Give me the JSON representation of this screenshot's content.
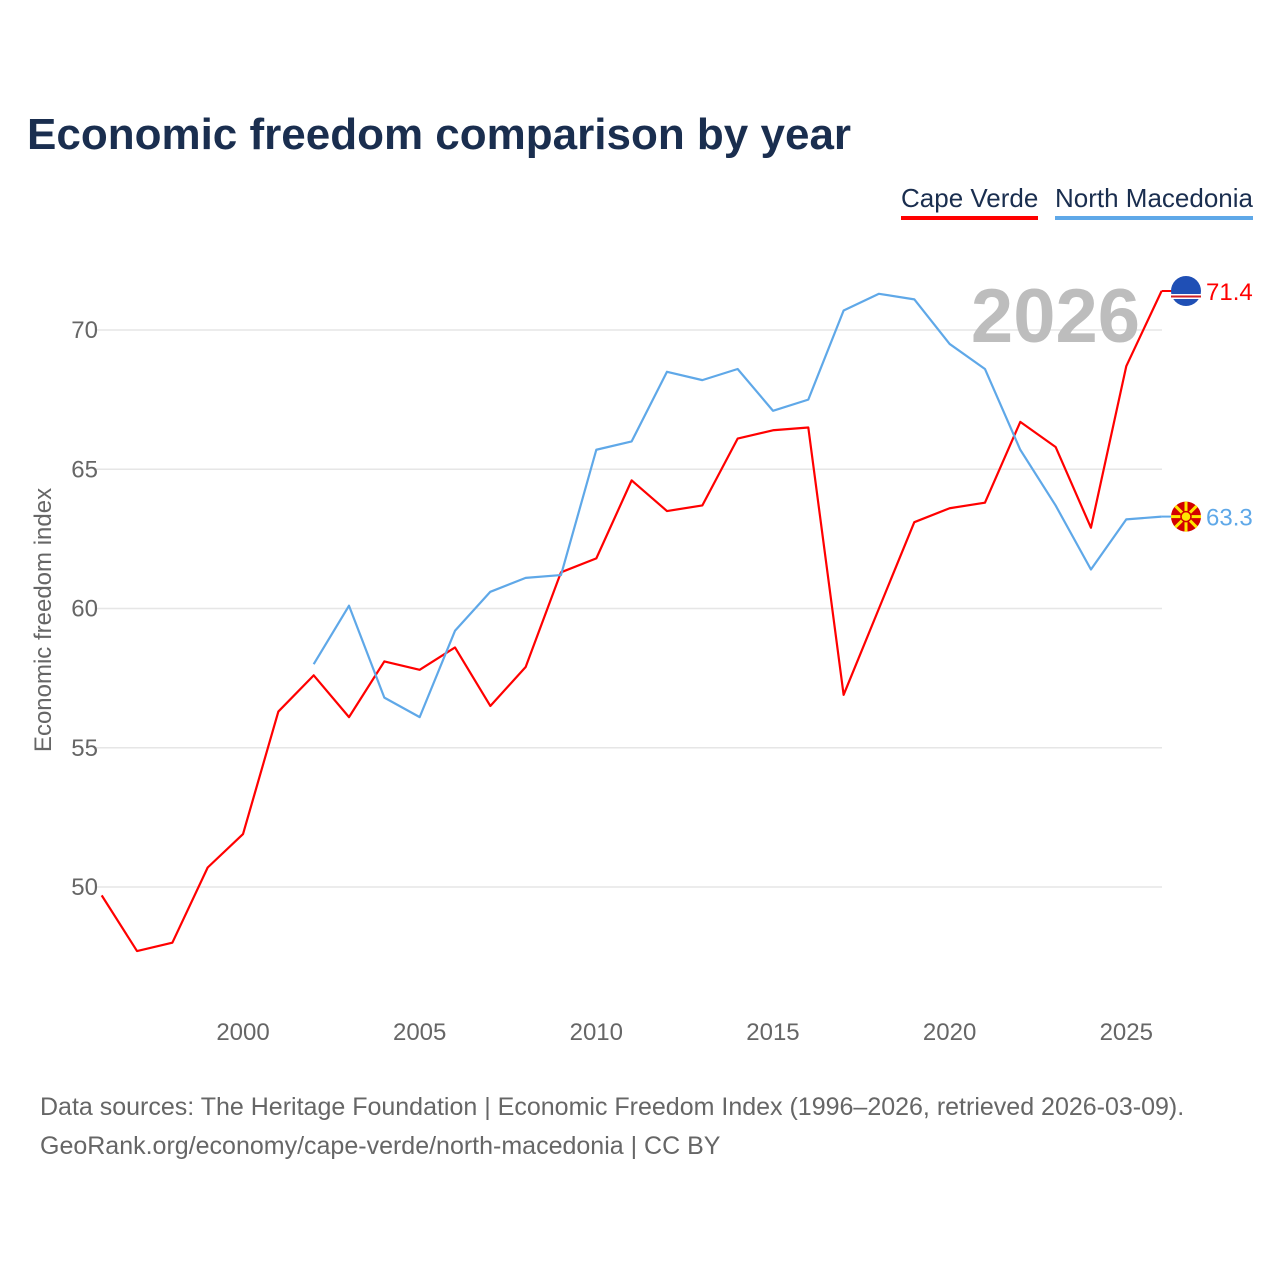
{
  "chart_data": {
    "type": "line",
    "title": "Economic freedom comparison by year",
    "xlabel": "",
    "ylabel": "Economic freedom index",
    "xlim": [
      1996,
      2026
    ],
    "ylim": [
      46.5,
      73
    ],
    "x_ticks": [
      2000,
      2005,
      2010,
      2015,
      2020,
      2025
    ],
    "y_ticks": [
      50,
      55,
      60,
      65,
      70
    ],
    "grid": true,
    "legend_position": "top-right",
    "year_watermark": "2026",
    "series": [
      {
        "name": "Cape Verde",
        "color": "#ff0000",
        "end_label": "71.4",
        "x": [
          1996,
          1997,
          1998,
          1999,
          2000,
          2001,
          2002,
          2003,
          2004,
          2005,
          2006,
          2007,
          2008,
          2009,
          2010,
          2011,
          2012,
          2013,
          2014,
          2015,
          2016,
          2017,
          2018,
          2019,
          2020,
          2021,
          2022,
          2023,
          2024,
          2025,
          2026
        ],
        "values": [
          49.7,
          47.7,
          48.0,
          50.7,
          51.9,
          56.3,
          57.6,
          56.1,
          58.1,
          57.8,
          58.6,
          56.5,
          57.9,
          61.3,
          61.8,
          64.6,
          63.5,
          63.7,
          66.1,
          66.4,
          66.5,
          56.9,
          60.0,
          63.1,
          63.6,
          63.8,
          66.7,
          65.8,
          62.9,
          68.7,
          71.4
        ]
      },
      {
        "name": "North Macedonia",
        "color": "#5fa8e8",
        "end_label": "63.3",
        "x": [
          2002,
          2003,
          2004,
          2005,
          2006,
          2007,
          2008,
          2009,
          2010,
          2011,
          2012,
          2013,
          2014,
          2015,
          2016,
          2017,
          2018,
          2019,
          2020,
          2021,
          2022,
          2023,
          2024,
          2025,
          2026
        ],
        "values": [
          58.0,
          60.1,
          56.8,
          56.1,
          59.2,
          60.6,
          61.1,
          61.2,
          65.7,
          66.0,
          68.5,
          68.2,
          68.6,
          67.1,
          67.5,
          70.7,
          71.3,
          71.1,
          69.5,
          68.6,
          65.7,
          63.7,
          61.4,
          63.2,
          63.3
        ]
      }
    ]
  },
  "footer": {
    "line1": "Data sources: The Heritage Foundation | Economic Freedom Index (1996–2026, retrieved 2026-03-09).",
    "line2": "GeoRank.org/economy/cape-verde/north-macedonia | CC BY"
  }
}
